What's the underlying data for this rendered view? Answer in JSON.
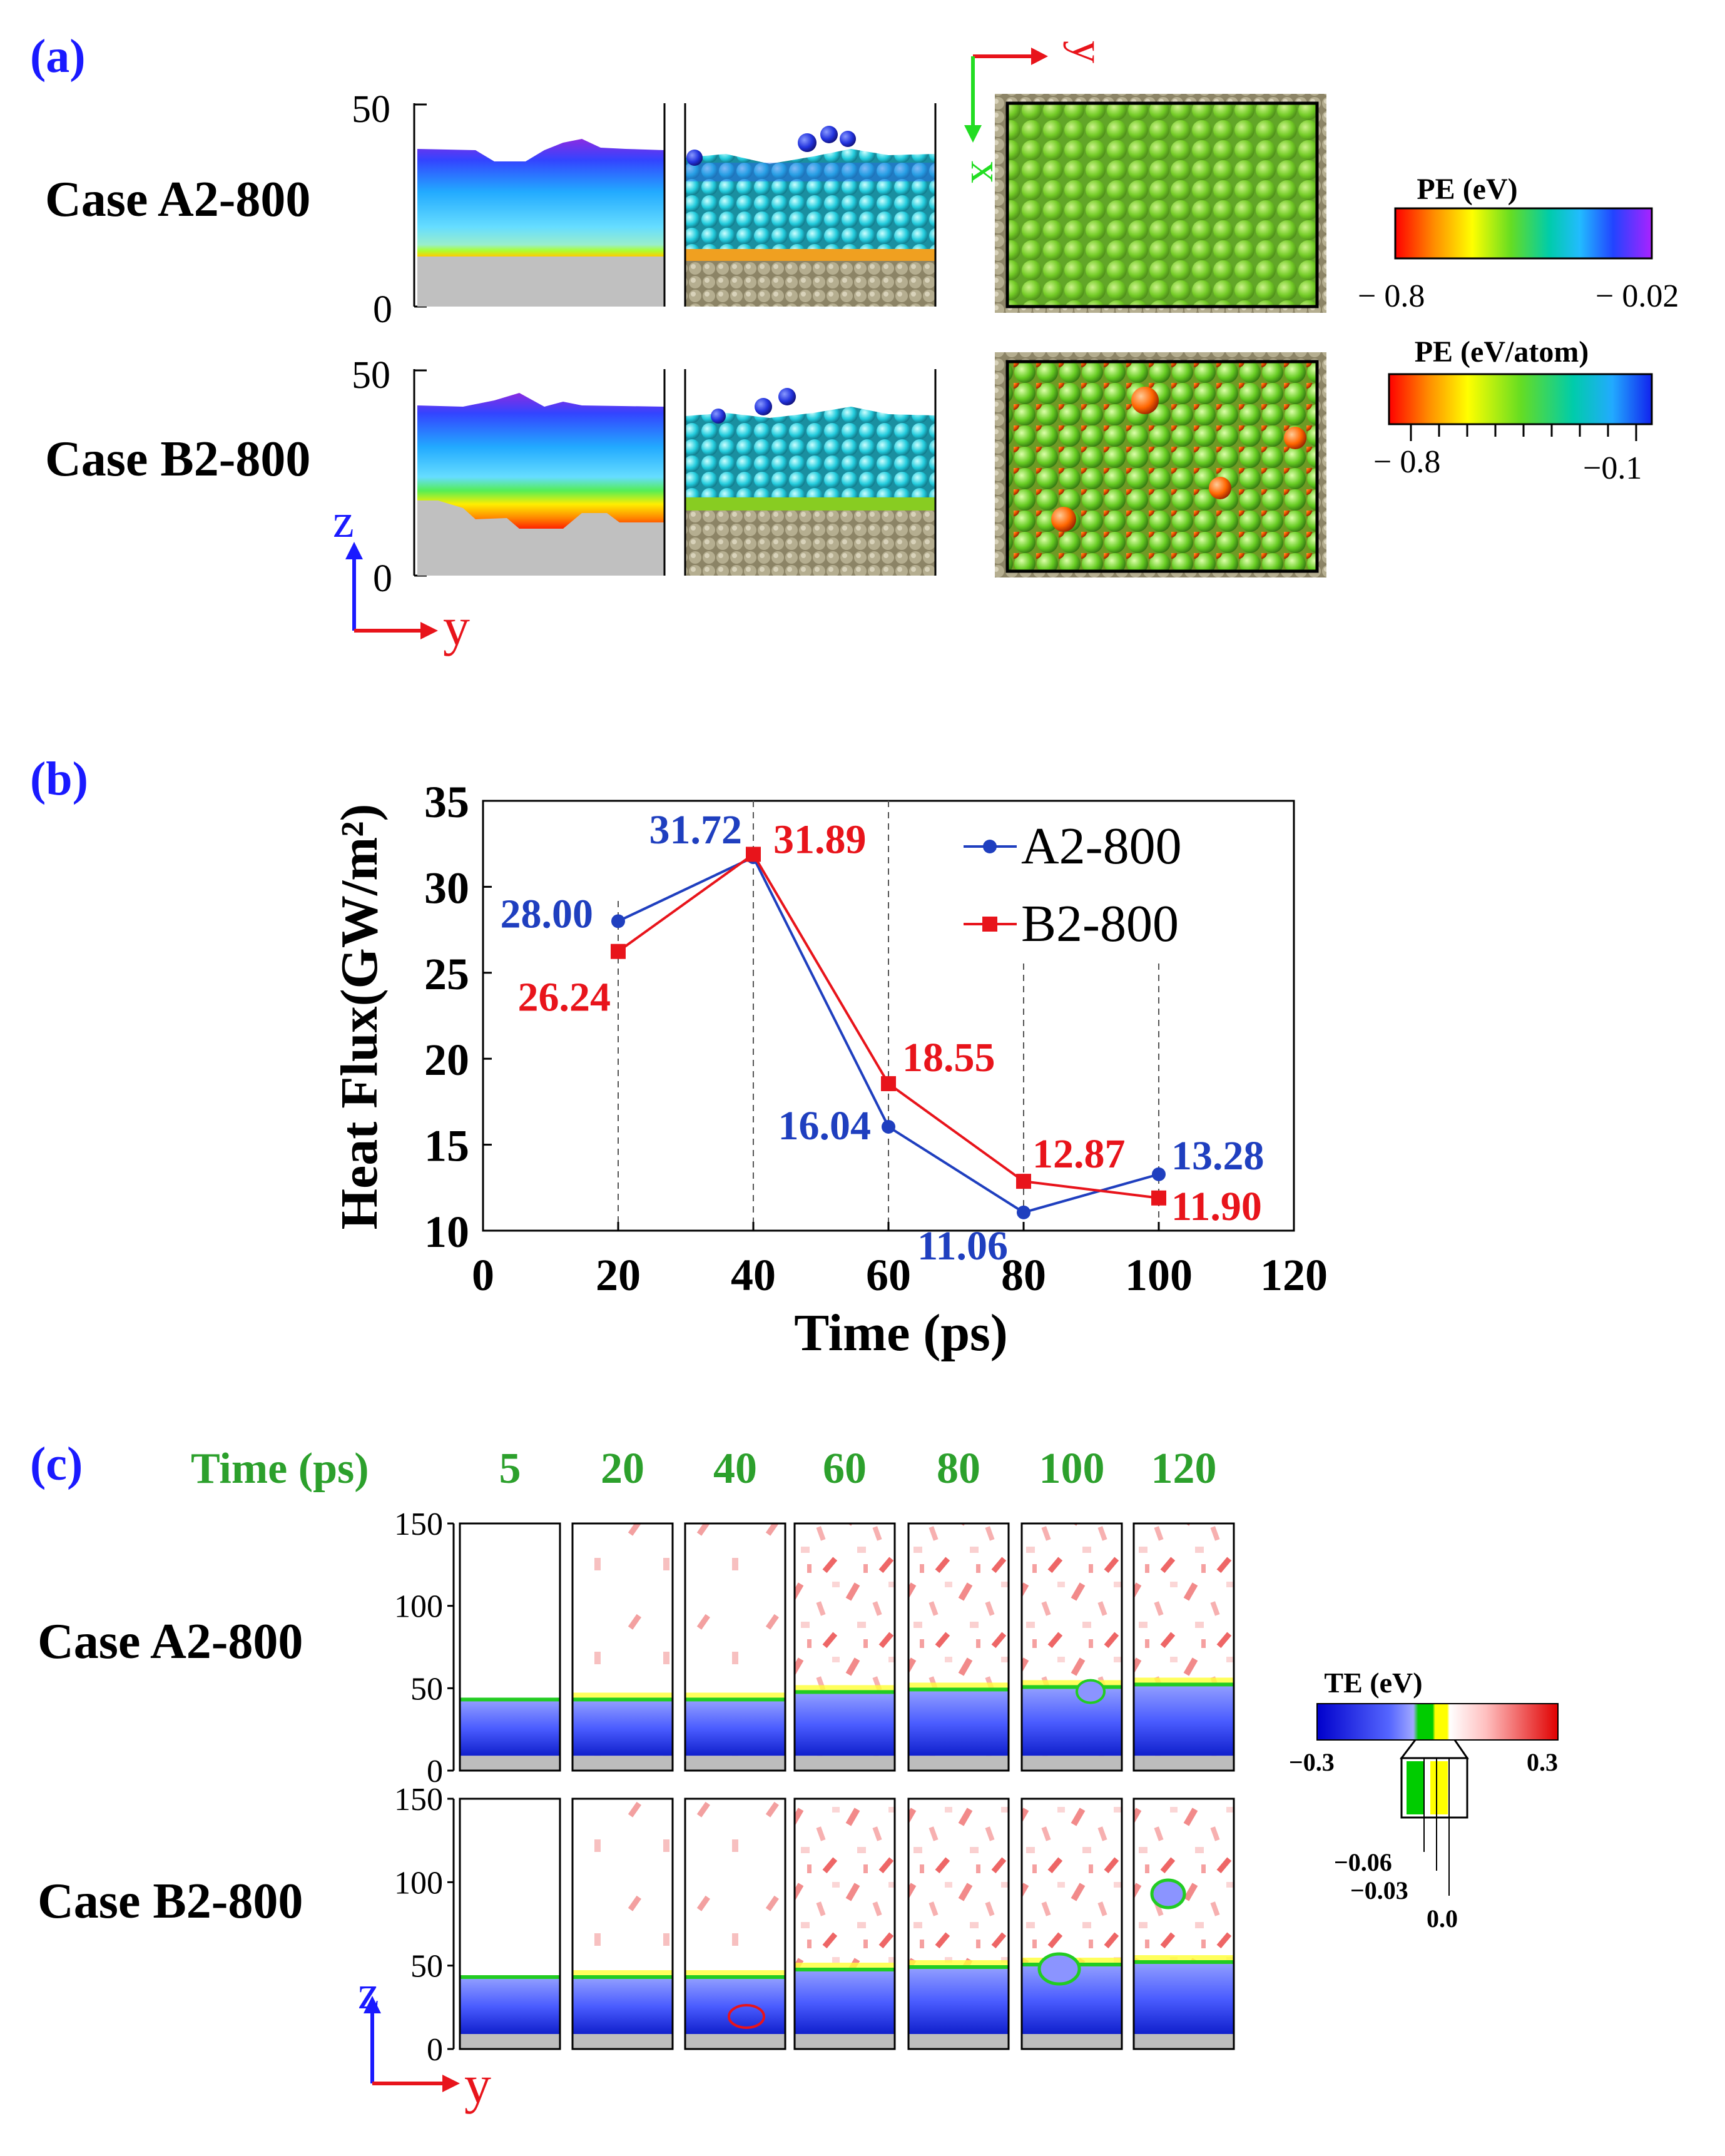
{
  "panel_a": {
    "label": "(a)",
    "case_a_label": "Case A2-800",
    "case_b_label": "Case B2-800",
    "tick_top": "50",
    "tick_bottom": "0",
    "axis_z": "z",
    "axis_y": "y",
    "top_axis_x": "x",
    "top_axis_y": "y",
    "colorbar1": {
      "title": "PE (eV)",
      "min_label": "− 0.8",
      "max_label": "− 0.02"
    },
    "colorbar2": {
      "title": "PE (eV/atom)",
      "min_label": "− 0.8",
      "max_label": "−0.1"
    }
  },
  "panel_b": {
    "label": "(b)"
  },
  "panel_c": {
    "label": "(c)",
    "time_header": "Time (ps)",
    "times": [
      "5",
      "20",
      "40",
      "60",
      "80",
      "100",
      "120"
    ],
    "case_a_label": "Case A2-800",
    "case_b_label": "Case B2-800",
    "ticks": [
      "150",
      "100",
      "50",
      "0"
    ],
    "axis_z": "z",
    "axis_y": "y",
    "colorbar": {
      "title": "TE (eV)",
      "min_label": "−0.3",
      "max_label": "0.3",
      "inset_labels": [
        "−0.06",
        "−0.03",
        "0.0"
      ]
    }
  },
  "colors": {
    "blue_series": "#1f3fbf",
    "red_series": "#e8141b",
    "label_blue": "#1a1aff",
    "time_green": "#2ca02c"
  },
  "chart_data": {
    "type": "line",
    "title": "",
    "xlabel": "Time (ps)",
    "ylabel": "Heat Flux(GW/m²)",
    "xlim": [
      0,
      120
    ],
    "ylim": [
      10,
      35
    ],
    "xticks": [
      0,
      20,
      40,
      60,
      80,
      100,
      120
    ],
    "yticks": [
      10,
      15,
      20,
      25,
      30,
      35
    ],
    "legend_position": "top-right",
    "series": [
      {
        "name": "A2-800",
        "color": "#1f3fbf",
        "marker": "circle",
        "x": [
          20,
          40,
          60,
          80,
          100
        ],
        "values": [
          28.0,
          31.72,
          16.04,
          11.06,
          13.28
        ],
        "labels": [
          "28.00",
          "31.72",
          "16.04",
          "11.06",
          "13.28"
        ]
      },
      {
        "name": "B2-800",
        "color": "#e8141b",
        "marker": "square",
        "x": [
          20,
          40,
          60,
          80,
          100
        ],
        "values": [
          26.24,
          31.89,
          18.55,
          12.87,
          11.9
        ],
        "labels": [
          "26.24",
          "31.89",
          "18.55",
          "12.87",
          "11.90"
        ]
      }
    ]
  }
}
